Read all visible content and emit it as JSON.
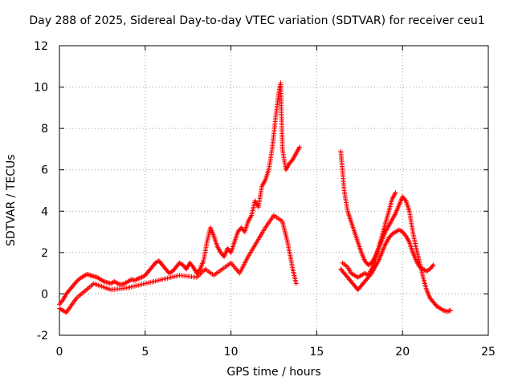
{
  "chart_data": {
    "type": "scatter",
    "title": "Day 288 of 2025, Sidereal Day-to-day VTEC variation (SDTVAR) for receiver ceu1",
    "xlabel": "GPS time / hours",
    "ylabel": "SDTVAR / TECUs",
    "xlim": [
      0,
      25
    ],
    "ylim": [
      -2,
      12
    ],
    "xticks": [
      "0",
      "5",
      "10",
      "15",
      "20",
      "25"
    ],
    "yticks": [
      "-2",
      "0",
      "2",
      "4",
      "6",
      "8",
      "10",
      "12"
    ],
    "grid": true,
    "marker": "+",
    "color": "#ff0000",
    "series": [
      {
        "name": "SDTVAR",
        "segments": [
          {
            "x": [
              0.0,
              0.2,
              0.4,
              0.6,
              0.8,
              1.0,
              1.2,
              1.4,
              1.6,
              1.8,
              2.0,
              2.2,
              2.4,
              2.6,
              2.8,
              3.0,
              3.2,
              3.4,
              3.6,
              3.8,
              4.0,
              4.2,
              4.4,
              4.6,
              4.8,
              5.0,
              5.2,
              5.4,
              5.6,
              5.8,
              6.0,
              6.2,
              6.4,
              6.6,
              6.8,
              7.0,
              7.2,
              7.4,
              7.6,
              7.8,
              8.0,
              8.2,
              8.4,
              8.6,
              8.8,
              9.0,
              9.2,
              9.4,
              9.6,
              9.8,
              10.0,
              10.2,
              10.4,
              10.6,
              10.8,
              11.0,
              11.2,
              11.4,
              11.6,
              11.8,
              12.0,
              12.2,
              12.4,
              12.6,
              12.8,
              12.9,
              13.0,
              13.1,
              13.2,
              13.4,
              13.6,
              13.8,
              14.0
            ],
            "y": [
              -0.5,
              -0.3,
              0.0,
              0.2,
              0.4,
              0.6,
              0.75,
              0.85,
              0.95,
              0.9,
              0.85,
              0.8,
              0.7,
              0.6,
              0.55,
              0.5,
              0.6,
              0.5,
              0.45,
              0.5,
              0.6,
              0.7,
              0.65,
              0.75,
              0.8,
              0.9,
              1.1,
              1.3,
              1.5,
              1.6,
              1.4,
              1.2,
              1.0,
              1.1,
              1.3,
              1.5,
              1.4,
              1.2,
              1.5,
              1.3,
              1.0,
              1.2,
              1.6,
              2.5,
              3.2,
              2.8,
              2.3,
              2.0,
              1.8,
              2.2,
              2.0,
              2.5,
              3.0,
              3.2,
              3.0,
              3.5,
              3.8,
              4.5,
              4.2,
              5.2,
              5.5,
              6.0,
              7.0,
              8.5,
              9.8,
              10.2,
              7.0,
              6.5,
              6.0,
              6.3,
              6.5,
              6.8,
              7.1
            ]
          },
          {
            "x": [
              0.0,
              0.2,
              0.4,
              1.0,
              2.0,
              3.0,
              4.0,
              5.0,
              6.0,
              7.0,
              8.0,
              8.5,
              9.0,
              9.5,
              10.0,
              10.5,
              11.0,
              11.5,
              12.0,
              12.5,
              13.0,
              13.3,
              13.6,
              13.8
            ],
            "y": [
              -0.7,
              -0.8,
              -0.9,
              -0.2,
              0.5,
              0.2,
              0.3,
              0.5,
              0.7,
              0.9,
              0.8,
              1.2,
              0.9,
              1.2,
              1.5,
              1.0,
              1.8,
              2.5,
              3.2,
              3.8,
              3.5,
              2.5,
              1.2,
              0.5
            ]
          },
          {
            "x": [
              16.4,
              16.5,
              16.6,
              16.8,
              17.0,
              17.2,
              17.4,
              17.6,
              17.8,
              18.0,
              18.2,
              18.4,
              18.6,
              18.8,
              19.0,
              19.2,
              19.4,
              19.6,
              19.8,
              20.0,
              20.2,
              20.4,
              20.6,
              20.8,
              21.0,
              21.2,
              21.4,
              21.6,
              21.8,
              22.0,
              22.2,
              22.4,
              22.6,
              22.8
            ],
            "y": [
              6.9,
              6.0,
              5.0,
              4.0,
              3.5,
              3.0,
              2.5,
              2.0,
              1.6,
              1.4,
              1.5,
              1.8,
              2.2,
              2.6,
              3.0,
              3.3,
              3.6,
              3.9,
              4.3,
              4.7,
              4.5,
              4.0,
              3.0,
              2.2,
              1.5,
              0.8,
              0.2,
              -0.2,
              -0.4,
              -0.6,
              -0.7,
              -0.8,
              -0.85,
              -0.8
            ]
          },
          {
            "x": [
              16.4,
              16.6,
              16.8,
              17.0,
              17.2,
              17.4,
              17.6,
              17.8,
              18.0,
              18.2,
              18.4,
              18.6,
              18.8,
              19.0,
              19.2,
              19.4,
              19.6,
              19.8,
              20.0,
              20.2,
              20.4,
              20.6,
              20.8,
              21.0,
              21.2,
              21.4,
              21.6,
              21.8
            ],
            "y": [
              1.2,
              1.0,
              0.8,
              0.6,
              0.4,
              0.2,
              0.4,
              0.6,
              0.8,
              1.0,
              1.3,
              1.6,
              2.0,
              2.4,
              2.7,
              2.9,
              3.0,
              3.1,
              3.0,
              2.8,
              2.5,
              2.0,
              1.6,
              1.3,
              1.2,
              1.1,
              1.2,
              1.4
            ]
          },
          {
            "x": [
              16.5,
              16.8,
              17.0,
              17.2,
              17.4,
              17.6,
              17.8,
              18.0,
              18.2,
              18.4,
              18.6,
              18.8,
              19.0,
              19.2,
              19.4,
              19.6
            ],
            "y": [
              1.5,
              1.3,
              1.0,
              0.9,
              0.8,
              0.9,
              1.0,
              0.9,
              1.2,
              1.6,
              2.2,
              2.8,
              3.4,
              4.0,
              4.6,
              4.9
            ]
          }
        ]
      }
    ]
  }
}
